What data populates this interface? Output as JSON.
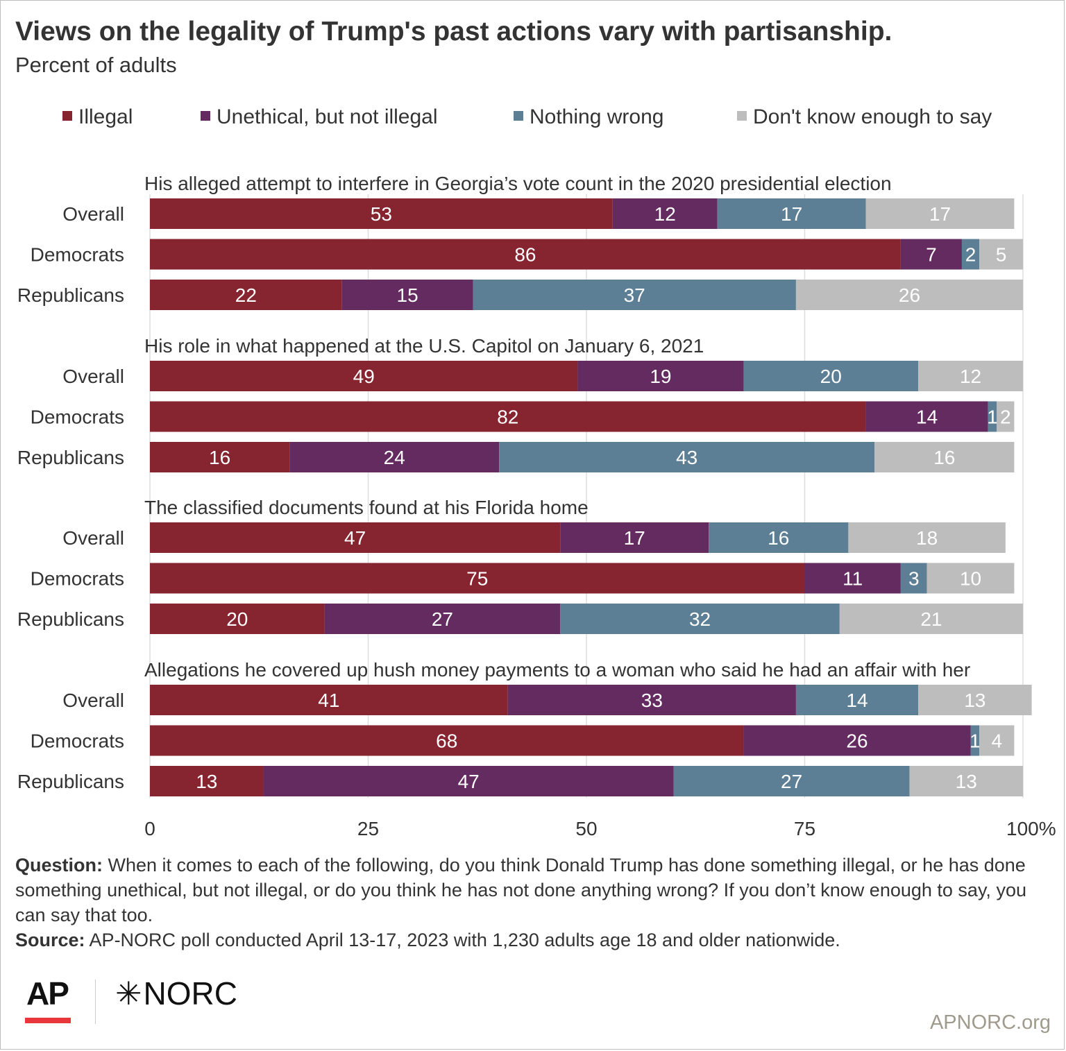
{
  "title": "Views on the legality of Trump's past actions vary with partisanship.",
  "subtitle": "Percent of adults",
  "logo": {
    "ap": "AP",
    "norc": "NORC",
    "norc_mark": "✳"
  },
  "site": "APNORC.org",
  "footer": {
    "question_label": "Question:",
    "question_text": "When it comes to each of the following, do you think Donald Trump has done something illegal, or he has done something unethical, but not illegal, or do you think he has not done anything wrong? If you don’t know enough to say, you can say that too.",
    "source_label": "Source:",
    "source_text": "AP-NORC poll conducted April 13-17, 2023 with 1,230 adults age 18 and older nationwide."
  },
  "colors": {
    "Illegal": "#86242f",
    "Unethical, but not illegal": "#632b60",
    "Nothing wrong": "#5c7f95",
    "Don't know enough to say": "#bdbdbd"
  },
  "chart_data": {
    "type": "bar",
    "orientation": "horizontal",
    "stacked": true,
    "series_names": [
      "Illegal",
      "Unethical, but not illegal",
      "Nothing wrong",
      "Don't know enough to say"
    ],
    "x_ticks": [
      "0",
      "25",
      "50",
      "75",
      "100%"
    ],
    "xlim": [
      0,
      100
    ],
    "grid": true,
    "legend_position": "top",
    "groups": [
      {
        "label": "His alleged attempt to interfere in Georgia’s vote count in the 2020 presidential election",
        "rows": [
          {
            "label": "Overall",
            "values": [
              53,
              12,
              17,
              17
            ]
          },
          {
            "label": "Democrats",
            "values": [
              86,
              7,
              2,
              5
            ]
          },
          {
            "label": "Republicans",
            "values": [
              22,
              15,
              37,
              26
            ]
          }
        ]
      },
      {
        "label": "His role in what happened at the U.S. Capitol on January 6, 2021",
        "rows": [
          {
            "label": "Overall",
            "values": [
              49,
              19,
              20,
              12
            ]
          },
          {
            "label": "Democrats",
            "values": [
              82,
              14,
              1,
              2
            ]
          },
          {
            "label": "Republicans",
            "values": [
              16,
              24,
              43,
              16
            ]
          }
        ]
      },
      {
        "label": "The classified documents found at his Florida home",
        "rows": [
          {
            "label": "Overall",
            "values": [
              47,
              17,
              16,
              18
            ]
          },
          {
            "label": "Democrats",
            "values": [
              75,
              11,
              3,
              10
            ]
          },
          {
            "label": "Republicans",
            "values": [
              20,
              27,
              32,
              21
            ]
          }
        ]
      },
      {
        "label": "Allegations he covered up hush money payments to a woman who said he had an affair with her",
        "rows": [
          {
            "label": "Overall",
            "values": [
              41,
              33,
              14,
              13
            ]
          },
          {
            "label": "Democrats",
            "values": [
              68,
              26,
              1,
              4
            ]
          },
          {
            "label": "Republicans",
            "values": [
              13,
              47,
              27,
              13
            ]
          }
        ]
      }
    ]
  }
}
